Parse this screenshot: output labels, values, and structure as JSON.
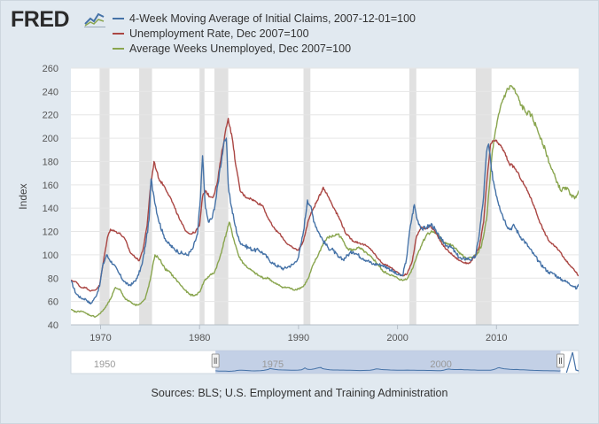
{
  "brand": {
    "name": "FRED",
    "icon": "fred-line-chart-icon"
  },
  "sources": "Sources: BLS; U.S. Employment and Training Administration",
  "chart_data": {
    "type": "line",
    "title": "",
    "ylabel": "Index",
    "xlabel": "",
    "xlim": [
      1967.0,
      2018.3
    ],
    "ylim": [
      40,
      260
    ],
    "y_ticks": [
      "40",
      "60",
      "80",
      "100",
      "120",
      "140",
      "160",
      "180",
      "200",
      "220",
      "240",
      "260"
    ],
    "x_ticks": [
      {
        "value": 1970,
        "label": "1970"
      },
      {
        "value": 1980,
        "label": "1980"
      },
      {
        "value": 1990,
        "label": "1990"
      },
      {
        "value": 2000,
        "label": "2000"
      },
      {
        "value": 2010,
        "label": "2010"
      }
    ],
    "grid": "horizontal",
    "legend_position": "top",
    "recessions": [
      [
        1969.9,
        1970.9
      ],
      [
        1973.9,
        1975.2
      ],
      [
        1980.0,
        1980.5
      ],
      [
        1981.5,
        1982.9
      ],
      [
        1990.5,
        1991.2
      ],
      [
        2001.2,
        2001.9
      ],
      [
        2007.9,
        2009.5
      ]
    ],
    "series": [
      {
        "name": "4-Week Moving Average of Initial Claims, 2007-12-01=100",
        "color": "#4572a7",
        "x": [
          1967.0,
          1967.5,
          1968.0,
          1968.5,
          1969.0,
          1969.5,
          1969.9,
          1970.2,
          1970.6,
          1970.9,
          1971.3,
          1971.8,
          1972.3,
          1972.8,
          1973.2,
          1973.7,
          1974.2,
          1974.6,
          1974.9,
          1975.1,
          1975.4,
          1975.8,
          1976.3,
          1976.8,
          1977.3,
          1977.8,
          1978.3,
          1978.8,
          1979.3,
          1979.8,
          1980.1,
          1980.3,
          1980.6,
          1980.9,
          1981.3,
          1981.7,
          1982.0,
          1982.4,
          1982.7,
          1982.9,
          1983.2,
          1983.6,
          1984.0,
          1984.5,
          1985.0,
          1985.5,
          1986.0,
          1986.5,
          1987.0,
          1987.5,
          1988.0,
          1988.5,
          1989.0,
          1989.5,
          1990.0,
          1990.5,
          1990.9,
          1991.2,
          1991.6,
          1992.0,
          1992.5,
          1993.0,
          1993.5,
          1994.0,
          1994.5,
          1995.0,
          1995.5,
          1996.0,
          1996.5,
          1997.0,
          1997.5,
          1998.0,
          1998.5,
          1999.0,
          1999.5,
          2000.0,
          2000.5,
          2000.9,
          2001.3,
          2001.7,
          2002.0,
          2002.5,
          2003.0,
          2003.5,
          2004.0,
          2004.5,
          2005.0,
          2005.5,
          2006.0,
          2006.5,
          2007.0,
          2007.5,
          2007.9,
          2008.3,
          2008.7,
          2009.0,
          2009.2,
          2009.5,
          2009.9,
          2010.3,
          2010.8,
          2011.3,
          2011.8,
          2012.3,
          2012.8,
          2013.3,
          2013.8,
          2014.3,
          2014.8,
          2015.3,
          2015.8,
          2016.3,
          2016.8,
          2017.3,
          2017.8,
          2018.1,
          2018.3
        ],
        "y": [
          78,
          67,
          63,
          62,
          58,
          64,
          73,
          90,
          100,
          96,
          92,
          85,
          78,
          74,
          75,
          80,
          92,
          112,
          130,
          165,
          150,
          132,
          118,
          110,
          106,
          103,
          101,
          100,
          105,
          118,
          150,
          185,
          140,
          128,
          132,
          150,
          170,
          192,
          200,
          160,
          142,
          125,
          112,
          108,
          106,
          104,
          104,
          101,
          96,
          92,
          90,
          88,
          90,
          92,
          98,
          120,
          147,
          142,
          128,
          120,
          112,
          106,
          104,
          98,
          96,
          100,
          103,
          100,
          97,
          95,
          92,
          92,
          91,
          89,
          86,
          83,
          82,
          96,
          125,
          143,
          130,
          122,
          124,
          126,
          118,
          112,
          108,
          106,
          100,
          96,
          97,
          96,
          99,
          120,
          150,
          188,
          195,
          172,
          155,
          142,
          130,
          122,
          125,
          117,
          112,
          106,
          100,
          94,
          89,
          85,
          84,
          80,
          78,
          76,
          73,
          71,
          75
        ]
      },
      {
        "name": "Unemployment Rate, Dec 2007=100",
        "color": "#aa4643",
        "x": [
          1967.0,
          1967.5,
          1968.0,
          1968.5,
          1969.0,
          1969.5,
          1969.9,
          1970.3,
          1970.7,
          1971.0,
          1971.5,
          1972.0,
          1972.5,
          1973.0,
          1973.5,
          1973.9,
          1974.3,
          1974.7,
          1975.0,
          1975.4,
          1975.9,
          1976.5,
          1977.0,
          1977.5,
          1978.0,
          1978.5,
          1979.0,
          1979.5,
          1980.0,
          1980.3,
          1980.6,
          1981.0,
          1981.4,
          1981.8,
          1982.2,
          1982.6,
          1982.9,
          1983.3,
          1983.7,
          1984.1,
          1984.6,
          1985.2,
          1985.8,
          1986.4,
          1987.0,
          1987.6,
          1988.2,
          1988.8,
          1989.4,
          1990.0,
          1990.5,
          1991.0,
          1991.5,
          1992.0,
          1992.5,
          1993.0,
          1993.6,
          1994.2,
          1994.8,
          1995.5,
          1996.2,
          1996.8,
          1997.4,
          1998.0,
          1998.6,
          1999.2,
          1999.8,
          2000.5,
          2001.0,
          2001.5,
          2001.9,
          2002.4,
          2002.8,
          2003.3,
          2003.8,
          2004.3,
          2004.8,
          2005.3,
          2005.8,
          2006.3,
          2006.8,
          2007.3,
          2007.9,
          2008.3,
          2008.7,
          2009.0,
          2009.4,
          2009.8,
          2010.3,
          2010.8,
          2011.3,
          2011.8,
          2012.3,
          2012.8,
          2013.3,
          2013.8,
          2014.3,
          2014.8,
          2015.3,
          2015.8,
          2016.3,
          2016.8,
          2017.3,
          2017.8,
          2018.3
        ],
        "y": [
          78,
          77,
          72,
          72,
          69,
          70,
          74,
          95,
          115,
          122,
          120,
          118,
          113,
          102,
          98,
          95,
          105,
          125,
          155,
          180,
          165,
          158,
          150,
          140,
          130,
          122,
          118,
          119,
          125,
          150,
          155,
          150,
          150,
          162,
          185,
          205,
          217,
          200,
          175,
          155,
          150,
          148,
          145,
          142,
          130,
          122,
          117,
          110,
          106,
          104,
          112,
          130,
          140,
          148,
          158,
          150,
          140,
          130,
          118,
          112,
          110,
          108,
          104,
          97,
          92,
          90,
          86,
          82,
          84,
          95,
          115,
          124,
          122,
          125,
          120,
          112,
          106,
          102,
          98,
          95,
          93,
          93,
          100,
          108,
          128,
          160,
          195,
          198,
          195,
          188,
          178,
          175,
          168,
          160,
          152,
          142,
          130,
          120,
          112,
          108,
          104,
          98,
          92,
          88,
          82
        ]
      },
      {
        "name": "Average Weeks Unemployed, Dec 2007=100",
        "color": "#89a54e",
        "x": [
          1967.0,
          1967.5,
          1968.0,
          1968.5,
          1969.0,
          1969.5,
          1970.0,
          1970.5,
          1971.0,
          1971.5,
          1972.0,
          1972.5,
          1973.0,
          1973.5,
          1974.0,
          1974.5,
          1975.0,
          1975.5,
          1976.0,
          1976.5,
          1977.0,
          1977.5,
          1978.0,
          1978.5,
          1979.0,
          1979.5,
          1980.0,
          1980.5,
          1981.0,
          1981.5,
          1982.0,
          1982.5,
          1983.0,
          1983.5,
          1984.0,
          1984.5,
          1985.0,
          1985.5,
          1986.0,
          1986.5,
          1987.0,
          1987.5,
          1988.0,
          1988.5,
          1989.0,
          1989.5,
          1990.0,
          1990.5,
          1991.0,
          1991.5,
          1992.0,
          1992.5,
          1993.0,
          1993.5,
          1994.0,
          1994.5,
          1995.0,
          1995.5,
          1996.0,
          1996.5,
          1997.0,
          1997.5,
          1998.0,
          1998.5,
          1999.0,
          1999.5,
          2000.0,
          2000.5,
          2001.0,
          2001.5,
          2002.0,
          2002.5,
          2003.0,
          2003.5,
          2004.0,
          2004.5,
          2005.0,
          2005.5,
          2006.0,
          2006.5,
          2007.0,
          2007.5,
          2008.0,
          2008.5,
          2009.0,
          2009.3,
          2009.6,
          2010.0,
          2010.5,
          2011.0,
          2011.5,
          2012.0,
          2012.5,
          2013.0,
          2013.5,
          2014.0,
          2014.5,
          2015.0,
          2015.5,
          2016.0,
          2016.5,
          2017.0,
          2017.5,
          2017.9,
          2018.3
        ],
        "y": [
          53,
          51,
          52,
          50,
          48,
          47,
          50,
          55,
          62,
          72,
          70,
          62,
          60,
          57,
          58,
          62,
          78,
          100,
          96,
          88,
          85,
          80,
          75,
          70,
          66,
          65,
          68,
          78,
          82,
          85,
          96,
          112,
          128,
          112,
          98,
          92,
          88,
          85,
          82,
          80,
          80,
          76,
          74,
          72,
          72,
          70,
          71,
          73,
          80,
          92,
          100,
          110,
          115,
          116,
          118,
          112,
          105,
          104,
          106,
          104,
          100,
          97,
          92,
          86,
          84,
          82,
          80,
          78,
          80,
          88,
          100,
          110,
          118,
          120,
          118,
          112,
          110,
          108,
          104,
          100,
          96,
          98,
          100,
          108,
          130,
          160,
          190,
          210,
          230,
          240,
          245,
          238,
          228,
          222,
          220,
          210,
          200,
          188,
          175,
          165,
          155,
          158,
          152,
          148,
          155
        ]
      }
    ],
    "navigator": {
      "x_ticks": [
        {
          "value": 1950,
          "label": "1950"
        },
        {
          "value": 1975,
          "label": "1975"
        },
        {
          "value": 2000,
          "label": "2000"
        }
      ],
      "xlim": [
        1945.5,
        2021.0
      ],
      "selected": [
        1967.0,
        2018.3
      ]
    }
  }
}
